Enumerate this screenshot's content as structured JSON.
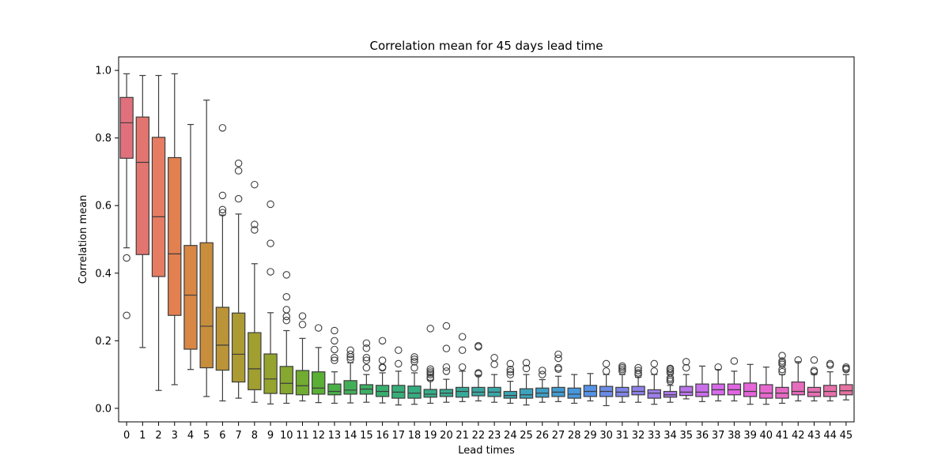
{
  "chart_data": {
    "type": "box",
    "title": "Correlation mean for 45 days lead time",
    "xlabel": "Lead times",
    "ylabel": "Correlation mean",
    "ylim": [
      -0.04,
      1.04
    ],
    "yticks": [
      0.0,
      0.2,
      0.4,
      0.6,
      0.8,
      1.0
    ],
    "ytick_labels": [
      "0.0",
      "0.2",
      "0.4",
      "0.6",
      "0.8",
      "1.0"
    ],
    "grid": false,
    "legend": "none",
    "categories": [
      "0",
      "1",
      "2",
      "3",
      "4",
      "5",
      "6",
      "7",
      "8",
      "9",
      "10",
      "11",
      "12",
      "13",
      "14",
      "15",
      "16",
      "17",
      "18",
      "19",
      "20",
      "21",
      "22",
      "23",
      "24",
      "25",
      "26",
      "27",
      "28",
      "29",
      "30",
      "31",
      "32",
      "33",
      "34",
      "35",
      "36",
      "37",
      "38",
      "39",
      "40",
      "41",
      "42",
      "43",
      "44",
      "45"
    ],
    "colors": [
      "#e1707d",
      "#e37570",
      "#e67c62",
      "#e38050",
      "#d88744",
      "#c98e3c",
      "#bb9437",
      "#ac9a33",
      "#a09f30",
      "#95a32f",
      "#86a730",
      "#71ab31",
      "#5aaf35",
      "#4baf48",
      "#42af58",
      "#3daf64",
      "#38ae6e",
      "#37ad78",
      "#37ac81",
      "#38ab89",
      "#38aa90",
      "#39a998",
      "#39a79f",
      "#3aa6a7",
      "#3ca4b1",
      "#3da2bb",
      "#3e9fc5",
      "#419bcf",
      "#4798dc",
      "#5792e5",
      "#6b8be6",
      "#7e86e8",
      "#8f82e9",
      "#9d7ee9",
      "#ab79e9",
      "#b974e9",
      "#c86fea",
      "#d66ae9",
      "#e065e2",
      "#e566d9",
      "#e668cf",
      "#e66ac5",
      "#e66cbc",
      "#e56fb3",
      "#e571aa",
      "#e572a1"
    ],
    "boxes": [
      {
        "min": 0.475,
        "q1": 0.74,
        "median": 0.845,
        "q3": 0.92,
        "max": 0.99,
        "outliers": [
          0.445,
          0.275
        ]
      },
      {
        "min": 0.18,
        "q1": 0.455,
        "median": 0.728,
        "q3": 0.862,
        "max": 0.985,
        "outliers": []
      },
      {
        "min": 0.053,
        "q1": 0.39,
        "median": 0.567,
        "q3": 0.802,
        "max": 0.985,
        "outliers": []
      },
      {
        "min": 0.07,
        "q1": 0.275,
        "median": 0.457,
        "q3": 0.742,
        "max": 0.99,
        "outliers": []
      },
      {
        "min": 0.115,
        "q1": 0.175,
        "median": 0.335,
        "q3": 0.482,
        "max": 0.84,
        "outliers": []
      },
      {
        "min": 0.035,
        "q1": 0.12,
        "median": 0.243,
        "q3": 0.49,
        "max": 0.912,
        "outliers": []
      },
      {
        "min": 0.022,
        "q1": 0.113,
        "median": 0.187,
        "q3": 0.299,
        "max": 0.572,
        "outliers": [
          0.83,
          0.63,
          0.588,
          0.579
        ]
      },
      {
        "min": 0.03,
        "q1": 0.078,
        "median": 0.16,
        "q3": 0.282,
        "max": 0.575,
        "outliers": [
          0.725,
          0.703,
          0.62
        ]
      },
      {
        "min": 0.018,
        "q1": 0.055,
        "median": 0.117,
        "q3": 0.224,
        "max": 0.428,
        "outliers": [
          0.662,
          0.544,
          0.528
        ]
      },
      {
        "min": 0.013,
        "q1": 0.044,
        "median": 0.087,
        "q3": 0.161,
        "max": 0.283,
        "outliers": [
          0.604,
          0.488,
          0.404
        ]
      },
      {
        "min": 0.015,
        "q1": 0.043,
        "median": 0.074,
        "q3": 0.124,
        "max": 0.23,
        "outliers": [
          0.395,
          0.33,
          0.292,
          0.272,
          0.26
        ]
      },
      {
        "min": 0.022,
        "q1": 0.04,
        "median": 0.067,
        "q3": 0.112,
        "max": 0.207,
        "outliers": [
          0.273,
          0.248
        ]
      },
      {
        "min": 0.017,
        "q1": 0.042,
        "median": 0.06,
        "q3": 0.108,
        "max": 0.18,
        "outliers": [
          0.238
        ]
      },
      {
        "min": 0.015,
        "q1": 0.04,
        "median": 0.05,
        "q3": 0.072,
        "max": 0.108,
        "outliers": [
          0.23,
          0.2,
          0.174,
          0.15,
          0.142
        ]
      },
      {
        "min": 0.016,
        "q1": 0.042,
        "median": 0.054,
        "q3": 0.082,
        "max": 0.135,
        "outliers": [
          0.172,
          0.16,
          0.152,
          0.145
        ]
      },
      {
        "min": 0.018,
        "q1": 0.042,
        "median": 0.057,
        "q3": 0.07,
        "max": 0.1,
        "outliers": [
          0.193,
          0.178,
          0.15,
          0.142,
          0.12
        ]
      },
      {
        "min": 0.016,
        "q1": 0.035,
        "median": 0.05,
        "q3": 0.068,
        "max": 0.105,
        "outliers": [
          0.2,
          0.142,
          0.122,
          0.12
        ]
      },
      {
        "min": 0.01,
        "q1": 0.03,
        "median": 0.048,
        "q3": 0.068,
        "max": 0.11,
        "outliers": [
          0.172,
          0.132
        ]
      },
      {
        "min": 0.012,
        "q1": 0.03,
        "median": 0.045,
        "q3": 0.066,
        "max": 0.105,
        "outliers": [
          0.152,
          0.145,
          0.138,
          0.12
        ]
      },
      {
        "min": 0.015,
        "q1": 0.033,
        "median": 0.042,
        "q3": 0.056,
        "max": 0.083,
        "outliers": [
          0.236,
          0.116,
          0.11,
          0.105,
          0.1,
          0.092,
          0.088
        ]
      },
      {
        "min": 0.018,
        "q1": 0.035,
        "median": 0.045,
        "q3": 0.056,
        "max": 0.086,
        "outliers": [
          0.244,
          0.177,
          0.122,
          0.11
        ]
      },
      {
        "min": 0.02,
        "q1": 0.033,
        "median": 0.05,
        "q3": 0.062,
        "max": 0.11,
        "outliers": [
          0.212,
          0.172,
          0.122
        ]
      },
      {
        "min": 0.022,
        "q1": 0.037,
        "median": 0.048,
        "q3": 0.062,
        "max": 0.098,
        "outliers": [
          0.185,
          0.182,
          0.105,
          0.102
        ]
      },
      {
        "min": 0.018,
        "q1": 0.035,
        "median": 0.048,
        "q3": 0.062,
        "max": 0.1,
        "outliers": [
          0.15,
          0.13
        ]
      },
      {
        "min": 0.015,
        "q1": 0.03,
        "median": 0.038,
        "q3": 0.05,
        "max": 0.08,
        "outliers": [
          0.132,
          0.115,
          0.108,
          0.1
        ]
      },
      {
        "min": 0.01,
        "q1": 0.03,
        "median": 0.04,
        "q3": 0.058,
        "max": 0.1,
        "outliers": [
          0.135,
          0.118
        ]
      },
      {
        "min": 0.018,
        "q1": 0.033,
        "median": 0.045,
        "q3": 0.06,
        "max": 0.085,
        "outliers": [
          0.112,
          0.1
        ]
      },
      {
        "min": 0.02,
        "q1": 0.035,
        "median": 0.048,
        "q3": 0.062,
        "max": 0.095,
        "outliers": [
          0.16,
          0.148,
          0.12,
          0.116
        ]
      },
      {
        "min": 0.015,
        "q1": 0.03,
        "median": 0.042,
        "q3": 0.06,
        "max": 0.1,
        "outliers": []
      },
      {
        "min": 0.022,
        "q1": 0.035,
        "median": 0.05,
        "q3": 0.068,
        "max": 0.103,
        "outliers": []
      },
      {
        "min": 0.008,
        "q1": 0.035,
        "median": 0.05,
        "q3": 0.065,
        "max": 0.1,
        "outliers": [
          0.132,
          0.11
        ]
      },
      {
        "min": 0.018,
        "q1": 0.035,
        "median": 0.048,
        "q3": 0.062,
        "max": 0.1,
        "outliers": [
          0.125,
          0.12,
          0.115,
          0.11
        ]
      },
      {
        "min": 0.018,
        "q1": 0.04,
        "median": 0.05,
        "q3": 0.065,
        "max": 0.092,
        "outliers": [
          0.12,
          0.112,
          0.105,
          0.1
        ]
      },
      {
        "min": 0.012,
        "q1": 0.03,
        "median": 0.045,
        "q3": 0.055,
        "max": 0.1,
        "outliers": [
          0.132,
          0.11
        ]
      },
      {
        "min": 0.018,
        "q1": 0.033,
        "median": 0.04,
        "q3": 0.05,
        "max": 0.068,
        "outliers": [
          0.118,
          0.115,
          0.11,
          0.105,
          0.09,
          0.085,
          0.08
        ]
      },
      {
        "min": 0.028,
        "q1": 0.038,
        "median": 0.048,
        "q3": 0.065,
        "max": 0.1,
        "outliers": [
          0.138,
          0.12
        ]
      },
      {
        "min": 0.02,
        "q1": 0.035,
        "median": 0.048,
        "q3": 0.072,
        "max": 0.125,
        "outliers": []
      },
      {
        "min": 0.022,
        "q1": 0.04,
        "median": 0.055,
        "q3": 0.072,
        "max": 0.115,
        "outliers": [
          0.122
        ]
      },
      {
        "min": 0.022,
        "q1": 0.04,
        "median": 0.055,
        "q3": 0.072,
        "max": 0.11,
        "outliers": [
          0.14
        ]
      },
      {
        "min": 0.012,
        "q1": 0.035,
        "median": 0.05,
        "q3": 0.075,
        "max": 0.13,
        "outliers": []
      },
      {
        "min": 0.012,
        "q1": 0.03,
        "median": 0.045,
        "q3": 0.07,
        "max": 0.122,
        "outliers": []
      },
      {
        "min": 0.015,
        "q1": 0.03,
        "median": 0.045,
        "q3": 0.062,
        "max": 0.1,
        "outliers": [
          0.156,
          0.14,
          0.135,
          0.13,
          0.115,
          0.108
        ]
      },
      {
        "min": 0.022,
        "q1": 0.04,
        "median": 0.05,
        "q3": 0.078,
        "max": 0.138,
        "outliers": [
          0.143
        ]
      },
      {
        "min": 0.022,
        "q1": 0.035,
        "median": 0.048,
        "q3": 0.062,
        "max": 0.1,
        "outliers": [
          0.143,
          0.112,
          0.108
        ]
      },
      {
        "min": 0.022,
        "q1": 0.035,
        "median": 0.05,
        "q3": 0.068,
        "max": 0.108,
        "outliers": [
          0.132,
          0.128
        ]
      },
      {
        "min": 0.025,
        "q1": 0.04,
        "median": 0.052,
        "q3": 0.07,
        "max": 0.1,
        "outliers": [
          0.122,
          0.118,
          0.115
        ]
      }
    ]
  }
}
